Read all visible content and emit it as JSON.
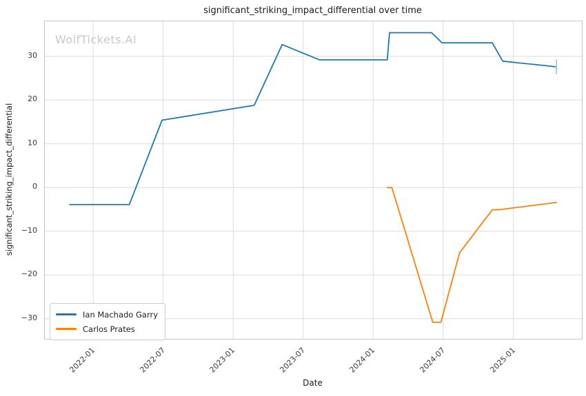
{
  "title": "significant_striking_impact_differential over time",
  "watermark": "WolfTickets.AI",
  "colors": {
    "series_blue": "#1f77b4",
    "series_orange": "#ff7f0e",
    "grid": "#dcdcdc",
    "frame": "#c5c5c5",
    "watermark": "#c9c9c9",
    "end_cap": "#a9c9e8"
  },
  "chart_data": {
    "type": "line",
    "title": "significant_striking_impact_differential over time",
    "xlabel": "Date",
    "ylabel": "significant_striking_impact_differential",
    "grid": true,
    "legend_position": "lower left",
    "x_axis": {
      "lim_months_from_2022_01": [
        -4.14,
        41.88
      ],
      "ticks": [
        {
          "m": 0,
          "label": "2022-01"
        },
        {
          "m": 6,
          "label": "2022-07"
        },
        {
          "m": 12,
          "label": "2023-01"
        },
        {
          "m": 18,
          "label": "2023-07"
        },
        {
          "m": 24,
          "label": "2024-01"
        },
        {
          "m": 30,
          "label": "2024-07"
        },
        {
          "m": 36,
          "label": "2025-01"
        }
      ]
    },
    "y_axis": {
      "lim": [
        -34.6,
        38.0
      ],
      "ticks": [
        30,
        20,
        10,
        0,
        -10,
        -20,
        -30
      ]
    },
    "series": [
      {
        "name": "Ian Machado Garry",
        "color": "#1f77b4",
        "points": [
          {
            "date": "2021-11",
            "m": -2.0,
            "v": -3.9
          },
          {
            "date": "2022-04",
            "m": 3.1,
            "v": -3.9
          },
          {
            "date": "2022-07",
            "m": 5.9,
            "v": 15.4
          },
          {
            "date": "2023-03",
            "m": 13.8,
            "v": 18.8
          },
          {
            "date": "2023-05",
            "m": 16.2,
            "v": 32.7
          },
          {
            "date": "2023-08",
            "m": 19.4,
            "v": 29.2
          },
          {
            "date": "2024-02",
            "m": 25.2,
            "v": 29.2
          },
          {
            "date": "2024-02",
            "m": 25.4,
            "v": 35.4
          },
          {
            "date": "2024-06",
            "m": 29.0,
            "v": 35.4
          },
          {
            "date": "2024-07",
            "m": 29.9,
            "v": 33.1
          },
          {
            "date": "2024-11",
            "m": 34.2,
            "v": 33.1
          },
          {
            "date": "2024-12",
            "m": 35.1,
            "v": 28.9
          },
          {
            "date": "2025-05",
            "m": 39.7,
            "v": 27.6
          }
        ],
        "end_cap": {
          "half_height_units": 1.7,
          "color": "#a9c9e8"
        }
      },
      {
        "name": "Carlos Prates",
        "color": "#ff7f0e",
        "points": [
          {
            "date": "2024-02",
            "m": 25.2,
            "v": 0.0
          },
          {
            "date": "2024-02",
            "m": 25.6,
            "v": 0.0
          },
          {
            "date": "2024-06",
            "m": 29.1,
            "v": -30.8
          },
          {
            "date": "2024-07",
            "m": 29.8,
            "v": -30.8
          },
          {
            "date": "2024-08",
            "m": 31.4,
            "v": -14.9
          },
          {
            "date": "2024-11",
            "m": 34.2,
            "v": -5.1
          },
          {
            "date": "2024-12",
            "m": 35.0,
            "v": -5.0
          },
          {
            "date": "2025-05",
            "m": 39.7,
            "v": -3.4
          }
        ]
      }
    ]
  }
}
